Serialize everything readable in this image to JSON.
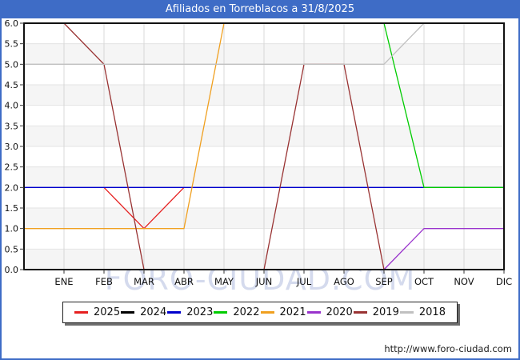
{
  "header": {
    "title": "Afiliados en Torreblacos a 31/8/2025"
  },
  "watermark": {
    "text": "FORO-CIUDAD.COM"
  },
  "footer": {
    "url": "http://www.foro-ciudad.com"
  },
  "colors": {
    "header_bg": "#3e6cc6",
    "outer_border": "#3e6cc6",
    "plot_frame": "#111111",
    "grid_h": "#e3e3e3",
    "grid_v": "#d8d8d8",
    "band": "#f5f5f5",
    "axis_text": "#111111"
  },
  "chart_data": {
    "type": "line",
    "title": "Afiliados en Torreblacos a 31/8/2025",
    "x_categories": [
      "ENE",
      "FEB",
      "MAR",
      "ABR",
      "MAY",
      "JUN",
      "JUL",
      "AGO",
      "SEP",
      "OCT",
      "NOV",
      "DIC"
    ],
    "x_unit": "0 = plot left edge, 1..12 = ENE..DIC",
    "ylim": [
      0,
      6
    ],
    "ytick_step": 0.5,
    "grid": true,
    "legend_position": "bottom",
    "series": [
      {
        "name": "2025",
        "color": "#e62020",
        "points": [
          [
            2,
            2
          ],
          [
            3,
            1
          ],
          [
            4,
            2
          ]
        ]
      },
      {
        "name": "2024",
        "color": "#000000",
        "points": []
      },
      {
        "name": "2023",
        "color": "#0000cc",
        "points": [
          [
            0,
            2
          ],
          [
            12,
            2
          ]
        ]
      },
      {
        "name": "2022",
        "color": "#00cc00",
        "points": [
          [
            0,
            6
          ],
          [
            9,
            6
          ],
          [
            10,
            2
          ],
          [
            12,
            2
          ]
        ]
      },
      {
        "name": "2021",
        "color": "#f0a020",
        "points": [
          [
            0,
            1
          ],
          [
            4,
            1
          ],
          [
            5,
            6
          ],
          [
            12,
            6
          ]
        ]
      },
      {
        "name": "2020",
        "color": "#9933cc",
        "points": [
          [
            0,
            0
          ],
          [
            9,
            0
          ],
          [
            10,
            1
          ],
          [
            12,
            1
          ]
        ]
      },
      {
        "name": "2019",
        "color": "#993333",
        "points": [
          [
            1,
            6
          ],
          [
            2,
            5
          ],
          [
            3,
            0
          ],
          [
            6,
            0
          ],
          [
            7,
            5
          ],
          [
            8,
            5
          ],
          [
            9,
            0
          ],
          [
            12,
            0
          ]
        ]
      },
      {
        "name": "2018",
        "color": "#c0c0c0",
        "points": [
          [
            0,
            5
          ],
          [
            9,
            5
          ],
          [
            10,
            6
          ],
          [
            12,
            6
          ]
        ]
      }
    ]
  }
}
